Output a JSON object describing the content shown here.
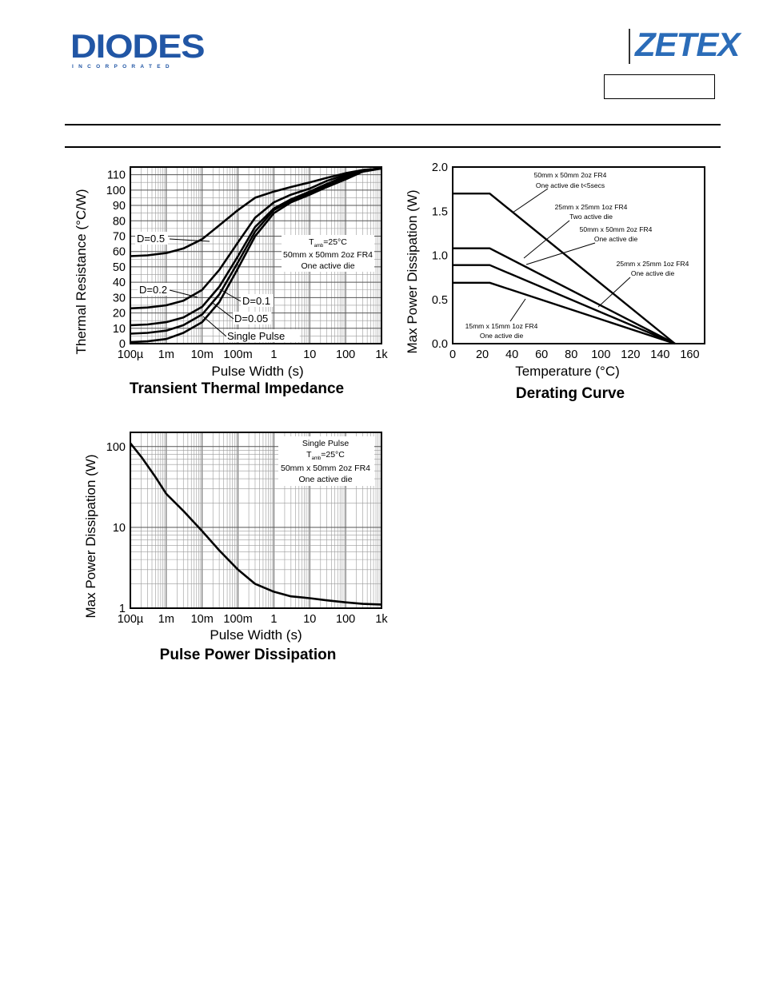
{
  "header": {
    "diodes_logo": {
      "word": "DIODES",
      "sub": "INCORPORATED"
    },
    "zetex_logo": {
      "word": "ZETEX"
    },
    "part_number_box": ""
  },
  "chart_data": [
    {
      "type": "line",
      "title": "Transient Thermal Impedance",
      "xlabel": "Pulse Width (s)",
      "ylabel": "Thermal Resistance (°C/W)",
      "xscale": "log",
      "xlim": [
        0.0001,
        1000
      ],
      "ylim": [
        0,
        115
      ],
      "xticks": [
        0.0001,
        0.001,
        0.01,
        0.1,
        1,
        10,
        100,
        1000
      ],
      "xtick_labels": [
        "100µ",
        "1m",
        "10m",
        "100m",
        "1",
        "10",
        "100",
        "1k"
      ],
      "yticks": [
        0,
        10,
        20,
        30,
        40,
        50,
        60,
        70,
        80,
        90,
        100,
        110
      ],
      "ytick_labels": [
        "0",
        "10",
        "20",
        "30",
        "40",
        "50",
        "60",
        "70",
        "80",
        "90",
        "100",
        "110"
      ],
      "grid": true,
      "note": {
        "line1_pre": "T",
        "line1_sub": "amb",
        "line1_post": "=25°C",
        "line2": "50mm x 50mm 2oz FR4",
        "line3": "One active die"
      },
      "series": [
        {
          "name": "D=0.5",
          "x": [
            0.0001,
            0.0003,
            0.001,
            0.003,
            0.01,
            0.03,
            0.1,
            0.3,
            1,
            3,
            10,
            30,
            100,
            300,
            1000
          ],
          "values": [
            57,
            57.5,
            59,
            62,
            68,
            77,
            87,
            95,
            99,
            102,
            105,
            108,
            111,
            113,
            114
          ]
        },
        {
          "name": "D=0.2",
          "x": [
            0.0001,
            0.0003,
            0.001,
            0.003,
            0.01,
            0.03,
            0.1,
            0.3,
            1,
            3,
            10,
            30,
            100,
            300,
            1000
          ],
          "values": [
            23,
            23.5,
            25,
            28,
            35,
            48,
            66,
            82,
            92,
            97,
            101,
            106,
            110,
            113,
            114
          ]
        },
        {
          "name": "D=0.1",
          "x": [
            0.0001,
            0.0003,
            0.001,
            0.003,
            0.01,
            0.03,
            0.1,
            0.3,
            1,
            3,
            10,
            30,
            100,
            300,
            1000
          ],
          "values": [
            12,
            12.5,
            14,
            17,
            24,
            37,
            57,
            76,
            88,
            94,
            99,
            104,
            109,
            113,
            114
          ]
        },
        {
          "name": "D=0.05",
          "x": [
            0.0001,
            0.0003,
            0.001,
            0.003,
            0.01,
            0.03,
            0.1,
            0.3,
            1,
            3,
            10,
            30,
            100,
            300,
            1000
          ],
          "values": [
            6.5,
            7,
            8.5,
            12,
            19,
            32,
            53,
            73,
            87,
            93,
            98,
            103,
            108,
            113,
            114
          ]
        },
        {
          "name": "Single Pulse",
          "x": [
            0.0001,
            0.0003,
            0.001,
            0.003,
            0.01,
            0.03,
            0.1,
            0.3,
            1,
            3,
            10,
            30,
            100,
            300,
            1000
          ],
          "values": [
            1,
            1.5,
            3,
            7,
            14,
            27,
            49,
            70,
            85,
            92,
            97,
            102,
            107,
            112,
            114
          ]
        }
      ]
    },
    {
      "type": "line",
      "title": "Derating Curve",
      "xlabel": "Temperature (°C)",
      "ylabel": "Max Power Dissipation (W)",
      "xlim": [
        0,
        170
      ],
      "ylim": [
        0,
        2.0
      ],
      "xticks": [
        0,
        20,
        40,
        60,
        80,
        100,
        120,
        140,
        160
      ],
      "xtick_labels": [
        "0",
        "20",
        "40",
        "60",
        "80",
        "100",
        "120",
        "140",
        "160"
      ],
      "yticks": [
        0,
        0.5,
        1.0,
        1.5,
        2.0
      ],
      "ytick_labels": [
        "0.0",
        "0.5",
        "1.0",
        "1.5",
        "2.0"
      ],
      "grid": false,
      "series": [
        {
          "name": "50mm x 50mm 2oz FR4 One active die t<5secs",
          "x": [
            0,
            25,
            150
          ],
          "values": [
            1.7,
            1.7,
            0
          ]
        },
        {
          "name": "25mm x 25mm 1oz FR4 Two active die",
          "x": [
            0,
            25,
            150
          ],
          "values": [
            1.08,
            1.08,
            0
          ]
        },
        {
          "name": "50mm x 50mm 2oz FR4 One active die",
          "x": [
            0,
            25,
            150
          ],
          "values": [
            0.89,
            0.89,
            0
          ]
        },
        {
          "name": "15mm x 15mm 1oz FR4 One active die",
          "x": [
            0,
            25,
            150
          ],
          "values": [
            0.69,
            0.69,
            0
          ]
        }
      ],
      "annotations": [
        {
          "line1": "50mm x 50mm 2oz FR4",
          "line2": "One active die t<5secs"
        },
        {
          "line1": "25mm x 25mm 1oz FR4",
          "line2": "Two active die"
        },
        {
          "line1": "50mm x 50mm 2oz FR4",
          "line2": "One active die"
        },
        {
          "line1": "25mm x 25mm 1oz FR4",
          "line2": "One active die"
        },
        {
          "line1": "15mm x 15mm 1oz FR4",
          "line2": "One active die"
        }
      ]
    },
    {
      "type": "line",
      "title": "Pulse Power Dissipation",
      "xlabel": "Pulse Width (s)",
      "ylabel": "Max Power Dissipation (W)",
      "xscale": "log",
      "yscale": "log",
      "xlim": [
        0.0001,
        1000
      ],
      "ylim": [
        1,
        150
      ],
      "xticks": [
        0.0001,
        0.001,
        0.01,
        0.1,
        1,
        10,
        100,
        1000
      ],
      "xtick_labels": [
        "100µ",
        "1m",
        "10m",
        "100m",
        "1",
        "10",
        "100",
        "1k"
      ],
      "yticks": [
        1,
        10,
        100
      ],
      "ytick_labels": [
        "1",
        "10",
        "100"
      ],
      "grid": true,
      "note": {
        "line0": "Single Pulse",
        "line1_pre": "T",
        "line1_sub": "amb",
        "line1_post": "=25°C",
        "line2": "50mm x 50mm 2oz FR4",
        "line3": "One active die"
      },
      "series": [
        {
          "name": "Single Pulse",
          "x": [
            0.0001,
            0.0002,
            0.0005,
            0.001,
            0.003,
            0.01,
            0.03,
            0.1,
            0.3,
            1,
            3,
            10,
            30,
            100,
            300,
            1000
          ],
          "values": [
            110,
            75,
            42,
            26,
            16,
            9,
            5.2,
            3.0,
            2.0,
            1.6,
            1.4,
            1.33,
            1.25,
            1.18,
            1.13,
            1.11
          ]
        }
      ]
    }
  ]
}
